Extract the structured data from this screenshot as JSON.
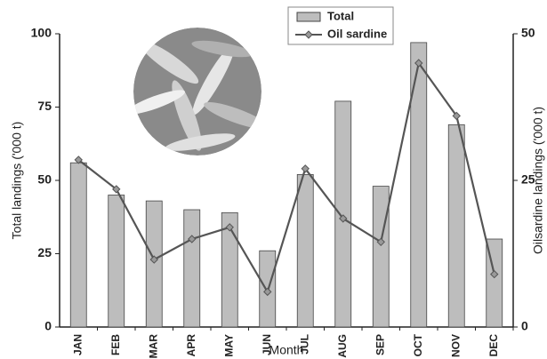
{
  "chart_data": {
    "type": "bar_line",
    "x_label": "Month",
    "y_label": "Total landings ('000 t)",
    "y2_label": "Oilsardine landings ('000 t)",
    "categories": [
      "JAN",
      "FEB",
      "MAR",
      "APR",
      "MAY",
      "JUN",
      "JUL",
      "AUG",
      "SEP",
      "OCT",
      "NOV",
      "DEC"
    ],
    "series": [
      {
        "name": "Total",
        "color": "#bdbdbd",
        "kind": "bar",
        "values": [
          56,
          45,
          43,
          40,
          39,
          26,
          52,
          77,
          48,
          97,
          69,
          30
        ]
      },
      {
        "name": "Oil sardine",
        "color": "#555555",
        "kind": "line",
        "axis": "y2",
        "values": [
          28.5,
          23.5,
          11.5,
          15,
          17,
          6,
          27,
          18.5,
          14.5,
          45,
          36,
          9
        ]
      }
    ],
    "ylim": [
      0,
      100
    ],
    "yticks": [
      0,
      25,
      50,
      75,
      100
    ],
    "y2lim": [
      0,
      50
    ],
    "y2ticks": [
      0,
      25,
      50
    ],
    "legend": "top"
  }
}
